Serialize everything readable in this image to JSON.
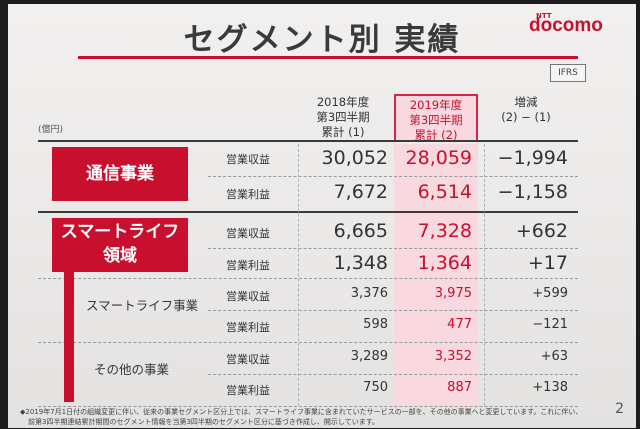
{
  "title": "セグメント別 実績",
  "logo": {
    "ntt": "NTT",
    "name": "docomo"
  },
  "ifrs_badge": "IFRS",
  "unit": "(億円)",
  "headers": {
    "col1": [
      "2018年度",
      "第3四半期",
      "累計 (1)"
    ],
    "col2": [
      "2019年度",
      "第3四半期",
      "累計 (2)"
    ],
    "col3": [
      "増減",
      "(2) − (1)"
    ]
  },
  "segments": {
    "telecom": "通信事業",
    "smartlife": [
      "スマートライフ",
      "領域"
    ],
    "smartlife_business": "スマートライフ事業",
    "other_business": "その他の事業"
  },
  "rows": [
    {
      "metric": "営業収益",
      "v2018": "30,052",
      "v2019": "28,059",
      "diff": "−1,994"
    },
    {
      "metric": "営業利益",
      "v2018": "7,672",
      "v2019": "6,514",
      "diff": "−1,158"
    },
    {
      "metric": "営業収益",
      "v2018": "6,665",
      "v2019": "7,328",
      "diff": "+662"
    },
    {
      "metric": "営業利益",
      "v2018": "1,348",
      "v2019": "1,364",
      "diff": "+17"
    },
    {
      "metric": "営業収益",
      "v2018": "3,376",
      "v2019": "3,975",
      "diff": "+599"
    },
    {
      "metric": "営業利益",
      "v2018": "598",
      "v2019": "477",
      "diff": "−121"
    },
    {
      "metric": "営業収益",
      "v2018": "3,289",
      "v2019": "3,352",
      "diff": "+63"
    },
    {
      "metric": "営業利益",
      "v2018": "750",
      "v2019": "887",
      "diff": "+138"
    }
  ],
  "footnotes": [
    "◆2019年7月1日付の組織変更に伴い、従来の事業セグメント区分上では、スマートライフ事業に含まれていたサービスの一部を、その他の事業へと変更しています。これに伴い、",
    "前第3四半期連結累計期間のセグメント情報を当第3四半期のセグメント区分に基づき作成し、開示しています。"
  ],
  "page_number": "2",
  "colors": {
    "accent": "#c8102e",
    "highlight": "#f7d9df",
    "background": "#ebe9e8"
  }
}
